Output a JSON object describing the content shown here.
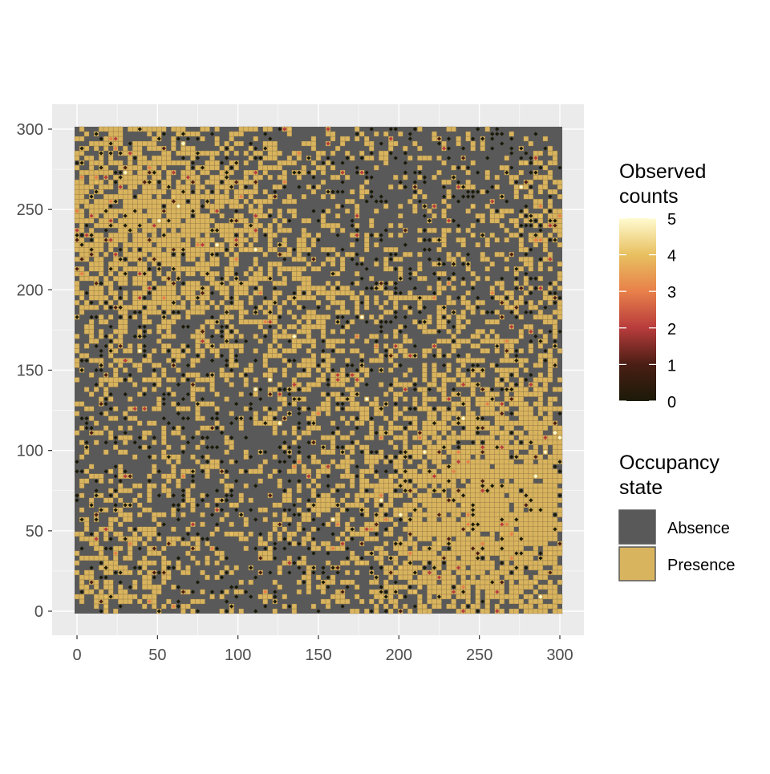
{
  "chart_data": {
    "type": "heatmap",
    "title": "",
    "xlabel": "",
    "ylabel": "",
    "xlim": [
      0,
      300
    ],
    "ylim": [
      0,
      300
    ],
    "x_ticks": [
      0,
      50,
      100,
      150,
      200,
      250,
      300
    ],
    "y_ticks": [
      0,
      50,
      100,
      150,
      200,
      250,
      300
    ],
    "grid": true,
    "grid_cell_size": 3,
    "background_color": "#ebebeb",
    "legend_position": "right",
    "occupancy_legend": {
      "title": "Occupancy\n state",
      "entries": [
        {
          "label": "Absence",
          "color": "#595959"
        },
        {
          "label": "Presence",
          "color": "#d9b45e"
        }
      ]
    },
    "counts_legend": {
      "title": "Observed\n counts",
      "range": [
        0,
        5
      ],
      "ticks": [
        0,
        1,
        2,
        3,
        4,
        5
      ],
      "gradient": [
        "#1b1a08",
        "#4a1e14",
        "#b83c3c",
        "#e8804a",
        "#e8c060",
        "#fffbd0"
      ]
    },
    "presence_regions": [
      {
        "x": 45,
        "y": 240,
        "radius": 70,
        "strength": 0.85
      },
      {
        "x": 265,
        "y": 65,
        "radius": 85,
        "strength": 0.95
      },
      {
        "x": 140,
        "y": 170,
        "radius": 35,
        "strength": 0.35
      },
      {
        "x": 20,
        "y": 20,
        "radius": 40,
        "strength": 0.45
      },
      {
        "x": 290,
        "y": 245,
        "radius": 25,
        "strength": 0.5
      }
    ],
    "background_presence_rate": 0.18,
    "point_observation_rate": 0.13
  }
}
